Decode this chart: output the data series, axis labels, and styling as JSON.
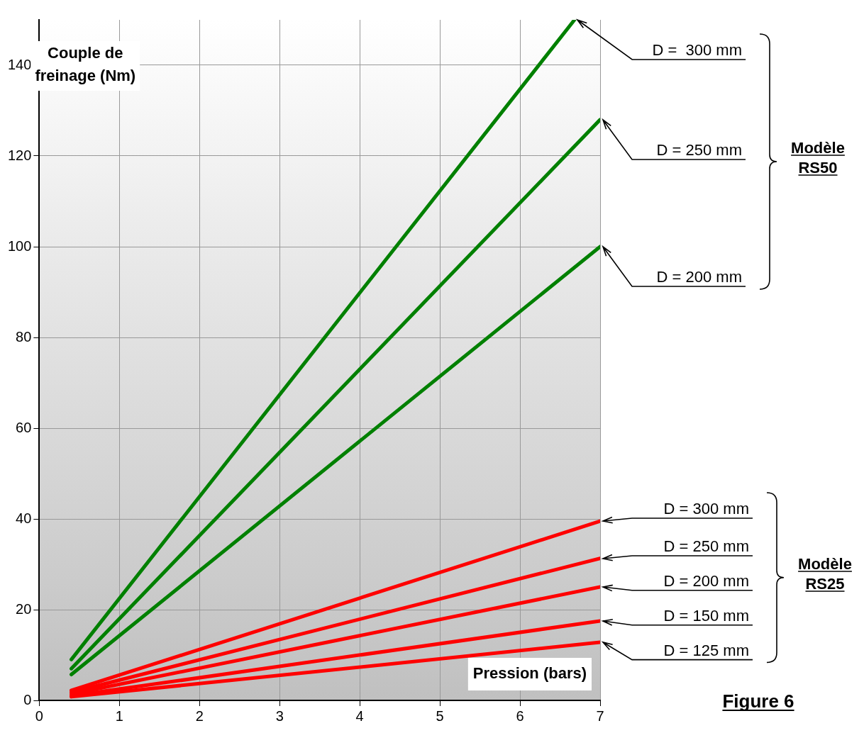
{
  "chart_data": {
    "type": "line",
    "xlabel": "Pression (bars)",
    "ylabel": "Couple de freinage (Nm)",
    "xlim": [
      0,
      7
    ],
    "xticks": [
      0,
      1,
      2,
      3,
      4,
      5,
      6,
      7
    ],
    "ylim": [
      0,
      150
    ],
    "yticks": [
      0,
      20,
      40,
      60,
      80,
      100,
      120,
      140
    ],
    "grid": true,
    "legend": false,
    "marker": "none",
    "line_style": "solid",
    "annotations": [
      "Modèle RS50",
      "Modèle RS25",
      "Figure 6"
    ],
    "series": [
      {
        "name": "D =  300 mm",
        "color": "#008000",
        "x": [
          0.4,
          6.68
        ],
        "values": [
          9,
          150
        ]
      },
      {
        "name": "D = 250 mm",
        "color": "#008000",
        "x": [
          0.4,
          7
        ],
        "values": [
          7,
          128
        ]
      },
      {
        "name": "D = 200 mm",
        "color": "#008000",
        "x": [
          0.4,
          7
        ],
        "values": [
          5.7,
          100
        ]
      },
      {
        "name": "D = 300 mm",
        "color": "#ff0000",
        "x": [
          0.4,
          7
        ],
        "values": [
          2.2,
          39.5
        ]
      },
      {
        "name": "D = 250 mm",
        "color": "#ff0000",
        "x": [
          0.4,
          7
        ],
        "values": [
          1.8,
          31.3
        ]
      },
      {
        "name": "D = 200 mm",
        "color": "#ff0000",
        "x": [
          0.4,
          7
        ],
        "values": [
          1.4,
          25
        ]
      },
      {
        "name": "D = 150 mm",
        "color": "#ff0000",
        "x": [
          0.4,
          7
        ],
        "values": [
          1.0,
          17.5
        ]
      },
      {
        "name": "D = 125 mm",
        "color": "#ff0000",
        "x": [
          0.4,
          7
        ],
        "values": [
          0.8,
          12.8
        ]
      }
    ]
  }
}
